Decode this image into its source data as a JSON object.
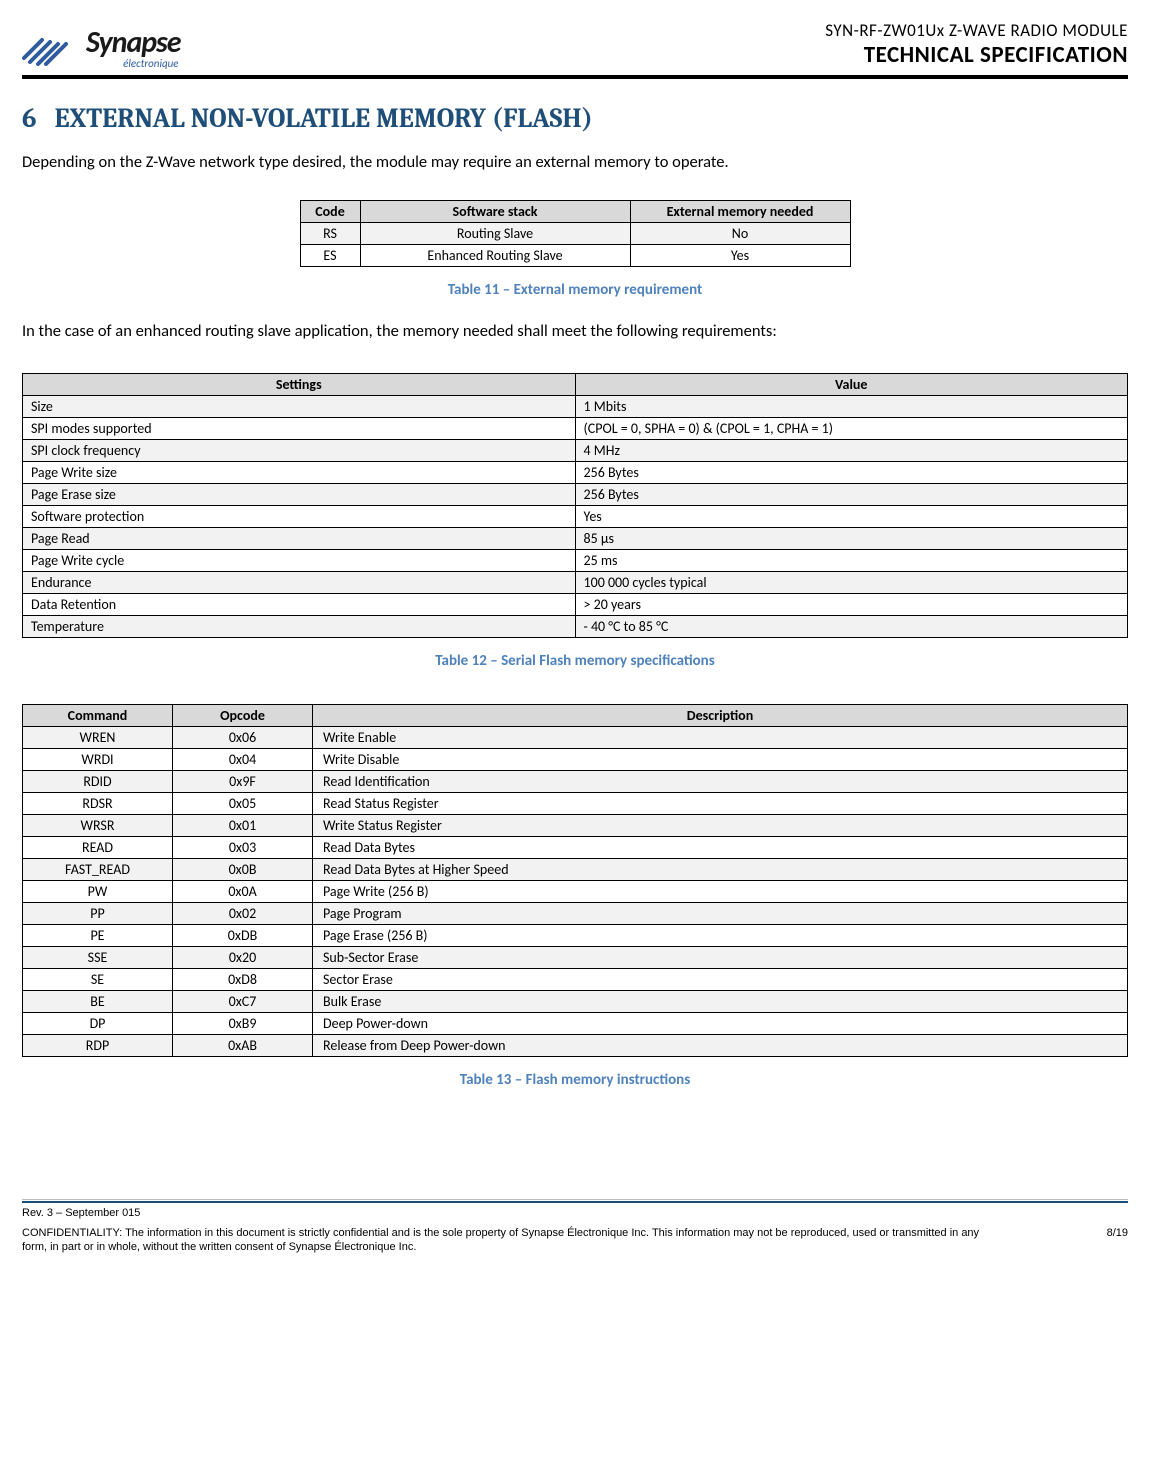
{
  "header": {
    "logo_main": "Synapse",
    "logo_sub": "électronique",
    "line1": "SYN-RF-ZW01Ux   Z-WAVE RADIO MODULE",
    "line2": "TECHNICAL SPECIFICATION",
    "logo_colors": {
      "stroke": "#2e5a9e",
      "text": "#1a1a1a",
      "sub": "#2e5a9e"
    }
  },
  "section": {
    "num": "6",
    "title": "EXTERNAL NON-VOLATILE MEMORY (FLASH)",
    "heading_color": "#1f4e79"
  },
  "para1": "Depending on the Z-Wave network type desired, the module may require an external memory to operate.",
  "para2": "In the case of an enhanced routing slave application, the memory needed shall meet the following requirements:",
  "table11": {
    "headers": [
      "Code",
      "Software stack",
      "External memory needed"
    ],
    "rows": [
      [
        "RS",
        "Routing Slave",
        "No"
      ],
      [
        "ES",
        "Enhanced Routing Slave",
        "Yes"
      ]
    ],
    "caption": "Table 11 – External memory requirement"
  },
  "table12": {
    "headers": [
      "Settings",
      "Value"
    ],
    "rows": [
      [
        "Size",
        "1 Mbits"
      ],
      [
        "SPI modes supported",
        "(CPOL = 0, SPHA = 0) & (CPOL = 1, CPHA = 1)"
      ],
      [
        "SPI clock frequency",
        "4 MHz"
      ],
      [
        "Page Write size",
        "256 Bytes"
      ],
      [
        "Page Erase size",
        "256 Bytes"
      ],
      [
        "Software protection",
        "Yes"
      ],
      [
        "Page Read",
        "85 µs"
      ],
      [
        "Page Write cycle",
        "25 ms"
      ],
      [
        "Endurance",
        "100 000 cycles typical"
      ],
      [
        "Data Retention",
        "> 20 years"
      ],
      [
        "Temperature",
        "- 40 °C to 85 °C"
      ]
    ],
    "caption": "Table 12 – Serial Flash memory specifications"
  },
  "table13": {
    "headers": [
      "Command",
      "Opcode",
      "Description"
    ],
    "rows": [
      [
        "WREN",
        "0x06",
        "Write Enable"
      ],
      [
        "WRDI",
        "0x04",
        "Write Disable"
      ],
      [
        "RDID",
        "0x9F",
        "Read Identification"
      ],
      [
        "RDSR",
        "0x05",
        "Read Status Register"
      ],
      [
        "WRSR",
        "0x01",
        "Write Status Register"
      ],
      [
        "READ",
        "0x03",
        "Read Data Bytes"
      ],
      [
        "FAST_READ",
        "0x0B",
        "Read Data Bytes at Higher Speed"
      ],
      [
        "PW",
        "0x0A",
        "Page Write (256 B)"
      ],
      [
        "PP",
        "0x02",
        "Page Program"
      ],
      [
        "PE",
        "0xDB",
        "Page Erase (256 B)"
      ],
      [
        "SSE",
        "0x20",
        "Sub-Sector Erase"
      ],
      [
        "SE",
        "0xD8",
        "Sector Erase"
      ],
      [
        "BE",
        "0xC7",
        "Bulk Erase"
      ],
      [
        "DP",
        "0xB9",
        "Deep Power-down"
      ],
      [
        "RDP",
        "0xAB",
        "Release from Deep Power-down"
      ]
    ],
    "caption": "Table 13 – Flash memory instructions"
  },
  "footer": {
    "rev": "Rev. 3 – September 015",
    "conf": "CONFIDENTIALITY: The information in this document is strictly confidential and is the sole property of Synapse Électronique Inc. This information may not be reproduced, used or transmitted in any form, in part or in whole, without the written consent of Synapse Électronique Inc.",
    "page": "8/19",
    "rule_color": "#1f4e79"
  },
  "style": {
    "caption_color": "#4f81bd",
    "th_bg": "#d9d9d9",
    "alt_bg": "#f2f2f2"
  }
}
